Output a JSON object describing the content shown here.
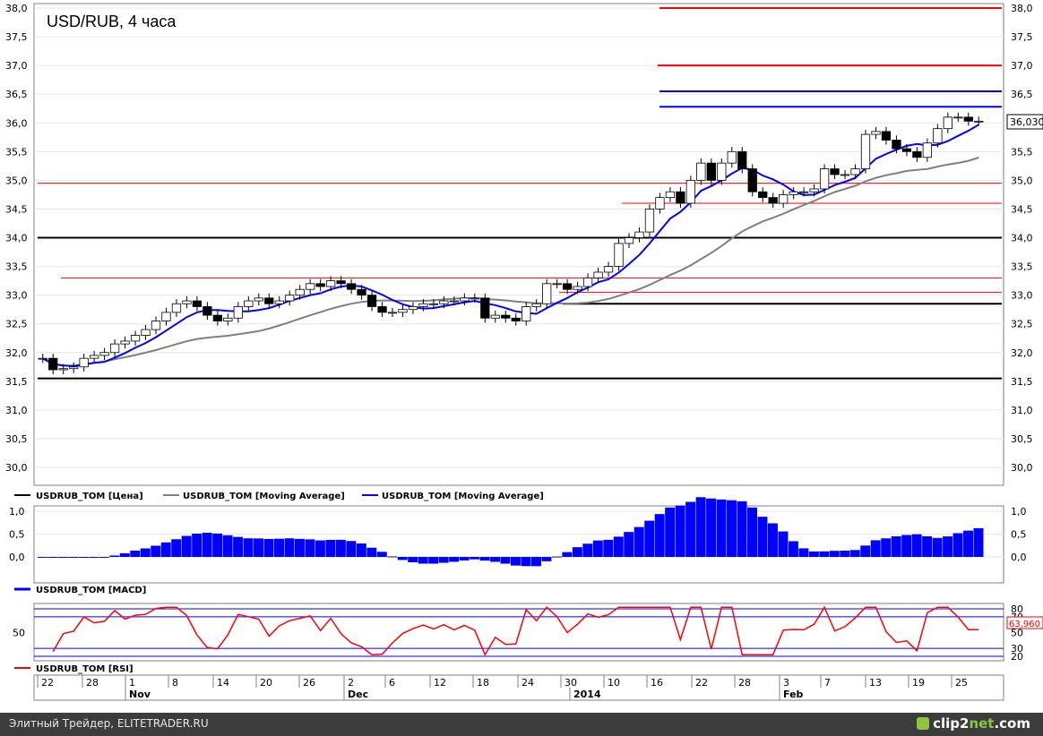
{
  "title": "USD/RUB, 4 часа",
  "last_price_label": "36,030",
  "price_axis_ticks": [
    "38,0",
    "37,5",
    "37,0",
    "36,5",
    "36,0",
    "35,5",
    "35,0",
    "34,5",
    "34,0",
    "33,5",
    "33,0",
    "32,5",
    "32,0",
    "31,5",
    "31,0",
    "30,5",
    "30,0"
  ],
  "macd_axis_ticks": [
    "1,0",
    "0,5",
    "0,0"
  ],
  "rsi_axis_ticks": [
    "80",
    "70",
    "50",
    "30",
    "20"
  ],
  "rsi_value_label": "63,960",
  "date_axis": {
    "day_ticks": [
      "22",
      "28",
      "1",
      "8",
      "14",
      "20",
      "26",
      "2",
      "6",
      "12",
      "18",
      "24",
      "30",
      "10",
      "16",
      "22",
      "28",
      "3",
      "7",
      "13",
      "19",
      "25"
    ],
    "month_labels": [
      "Nov",
      "Dec",
      "2014",
      "Feb"
    ]
  },
  "legends": {
    "price": [
      "USDRUB_TOM [Цена]",
      "USDRUB_TOM [Moving Average]",
      "USDRUB_TOM [Moving Average]"
    ],
    "macd": "USDRUB_TOM [MACD]",
    "rsi": "USDRUB_TOM [RSI]"
  },
  "footer": {
    "credit": "Элитный Трейдер, ELITETRADER.RU",
    "brand_a": "clip2",
    "brand_b": "net",
    "brand_c": ".com"
  },
  "colors": {
    "price": "#000000",
    "ma_long": "#808080",
    "ma_short": "#0000ff",
    "macd": "#0000ff",
    "rsi": "#ff0000",
    "red_level": "#ff0000",
    "blue_level": "#0000ff",
    "black_level": "#000000"
  },
  "chart_data": [
    {
      "type": "candlestick",
      "title": "USD/RUB, 4 часа",
      "ylim": [
        29.8,
        38.1
      ],
      "series": [
        {
          "name": "USDRUB_TOM [Цена]",
          "x": [
            0,
            10,
            20,
            30,
            40,
            50,
            60,
            70,
            80,
            90,
            100,
            110,
            120,
            130,
            140,
            150,
            160,
            170,
            180,
            190,
            200,
            210,
            220,
            230,
            240,
            250,
            260,
            270,
            280,
            290,
            300,
            310,
            320,
            330,
            340,
            350,
            360,
            370,
            380,
            390,
            400,
            410,
            420,
            430,
            440,
            450,
            460,
            470,
            480,
            490,
            500,
            510,
            520,
            530,
            540,
            550,
            560,
            570,
            580,
            590,
            600,
            610,
            620,
            630,
            640,
            650,
            660,
            670,
            680,
            690,
            700,
            710,
            720,
            730,
            740,
            750,
            760,
            770,
            780,
            790,
            800,
            810,
            820,
            830,
            840,
            850,
            860,
            870,
            880,
            890,
            900,
            910,
            920,
            930,
            940,
            950,
            960,
            970,
            980,
            990,
            1000,
            1010,
            1020,
            1030,
            1040,
            1050
          ],
          "close": [
            31.9,
            31.7,
            31.72,
            31.75,
            31.9,
            31.95,
            32.0,
            32.15,
            32.2,
            32.3,
            32.4,
            32.55,
            32.7,
            32.85,
            32.9,
            32.8,
            32.65,
            32.55,
            32.6,
            32.8,
            32.9,
            32.95,
            32.85,
            32.9,
            33.0,
            33.1,
            33.2,
            33.15,
            33.25,
            33.2,
            33.1,
            33.0,
            32.8,
            32.7,
            32.7,
            32.75,
            32.8,
            32.85,
            32.85,
            32.9,
            32.9,
            32.95,
            32.95,
            32.6,
            32.65,
            32.6,
            32.55,
            32.8,
            32.85,
            33.2,
            33.2,
            33.1,
            33.15,
            33.3,
            33.4,
            33.5,
            33.9,
            34.0,
            34.1,
            34.5,
            34.7,
            34.8,
            34.6,
            35.0,
            35.3,
            35.0,
            35.3,
            35.5,
            35.2,
            34.8,
            34.7,
            34.6,
            34.75,
            34.8,
            34.8,
            34.85,
            35.2,
            35.1,
            35.1,
            35.2,
            35.8,
            35.85,
            35.7,
            35.55,
            35.5,
            35.4,
            35.65,
            35.9,
            36.1,
            36.1,
            36.03,
            36.03,
            36.03,
            36.03,
            36.03,
            36.03,
            36.03,
            36.03,
            36.03,
            36.03,
            36.03,
            36.03,
            36.03,
            36.03,
            36.03,
            36.03
          ]
        },
        {
          "name": "USDRUB_TOM [Moving Average]",
          "color": "gray"
        },
        {
          "name": "USDRUB_TOM [Moving Average]",
          "color": "blue"
        }
      ],
      "horizontal_levels": {
        "red": [
          38.0,
          37.0,
          34.95,
          34.6,
          33.3,
          33.05
        ],
        "blue": [
          36.55,
          36.28
        ],
        "black": [
          34.0,
          32.85,
          31.55
        ]
      },
      "last_value": 36.03
    },
    {
      "type": "bar",
      "title": "USDRUB_TOM [MACD]",
      "ylim": [
        -0.3,
        1.0
      ]
    },
    {
      "type": "line",
      "title": "USDRUB_TOM [RSI]",
      "ylim": [
        20,
        80
      ],
      "levels": [
        80,
        70,
        30,
        20
      ],
      "last_value": 63.96
    }
  ]
}
